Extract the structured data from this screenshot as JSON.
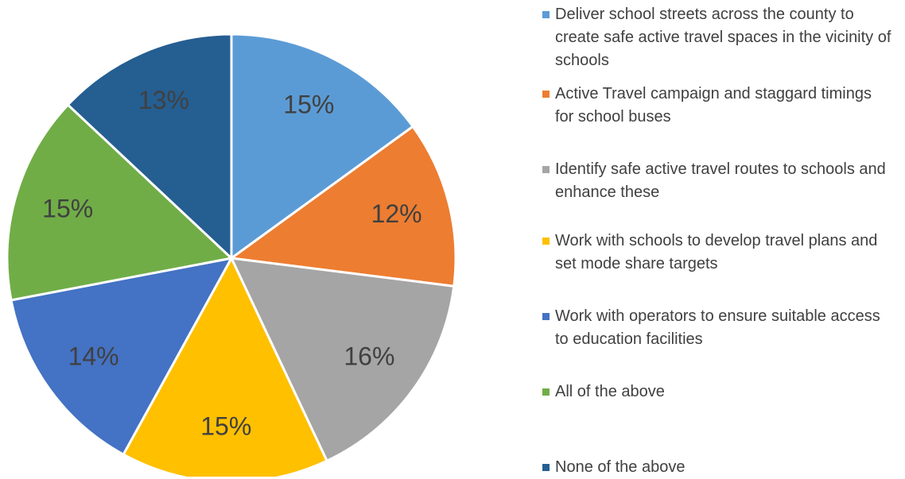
{
  "chart_data": {
    "type": "pie",
    "categories": [
      "Deliver school streets across the county to create safe active travel spaces in the vicinity of schools",
      "Active Travel campaign and staggard timings for school buses",
      "Identify safe active travel routes to schools and enhance these",
      "Work with schools to develop travel plans and set mode share targets",
      "Work with operators to ensure suitable access to education facilities",
      "All of the above",
      "None of the above"
    ],
    "values": [
      15,
      12,
      16,
      15,
      14,
      15,
      13
    ],
    "value_labels": [
      "15%",
      "12%",
      "16%",
      "15%",
      "14%",
      "15%",
      "13%"
    ],
    "colors": [
      "#5b9bd5",
      "#ed7d31",
      "#a5a5a5",
      "#ffc000",
      "#4472c4",
      "#70ad47",
      "#255e91"
    ],
    "legend": "right"
  }
}
